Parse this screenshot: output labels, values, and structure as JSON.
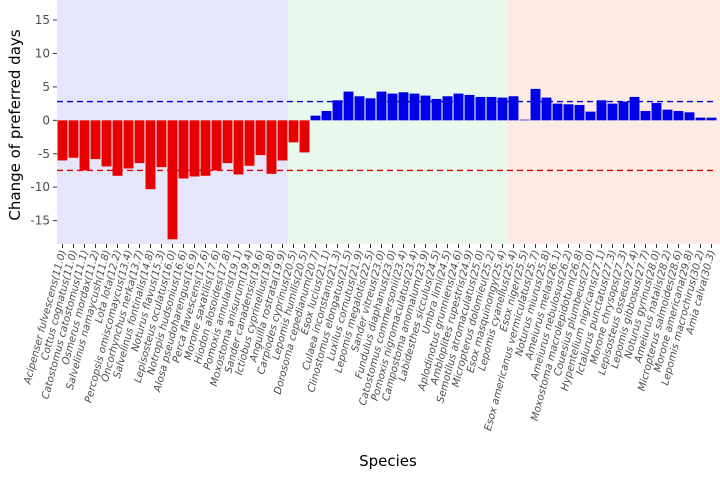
{
  "chart_data": {
    "type": "bar",
    "title": "",
    "xlabel": "Species",
    "ylabel": "Change of preferred days",
    "ylim": [
      -18.5,
      18
    ],
    "yticks": [
      -15,
      -10,
      -5,
      0,
      5,
      10,
      15
    ],
    "grid": false,
    "legend": "none",
    "reference_lines": [
      {
        "y": 2.8,
        "color": "#0000cc",
        "style": "dashed"
      },
      {
        "y": -7.5,
        "color": "#dd0000",
        "style": "dashed"
      }
    ],
    "background_bands": [
      {
        "from": 0,
        "to": 20,
        "color": "#e6e6fb"
      },
      {
        "from": 21,
        "to": 40,
        "color": "#e8f8ec"
      },
      {
        "from": 41,
        "to": 80,
        "color": "#fcebe3"
      }
    ],
    "colors": {
      "negative": "#e60000",
      "positive": "#0000e6"
    },
    "categories": [
      "Acipenser fulvescens(11.0)",
      "Cottus cognatus(11.0)",
      "Catostomus catostomus(11.1)",
      "Osmerus mordax(11.2)",
      "Salvelinus namaycush(11.8)",
      "Lota lota(12.2)",
      "Percopsis omiscomaycus(13.4)",
      "Oncorhynchus nerka(13.7)",
      "Salvelinus fontinalis(14.8)",
      "Noturus flavus(15.3)",
      "Lepisosteus oculatus(16.0)",
      "Notropis hudsonius(16.6)",
      "Alosa pseudoharengus(16.9)",
      "Perca flavescens(17.6)",
      "Morone saxatilis(17.6)",
      "Hiodon alosoides(17.8)",
      "Pomoxis annularis(19.1)",
      "Moxostoma anisurum(19.4)",
      "Sander canadensis(19.6)",
      "Ictiobus cyprinellus(19.8)",
      "Anguilla rostrata(19.9)",
      "Carpiodes cyprinus(20.5)",
      "Lepomis humilis(20.5)",
      "Dorosoma cepedianum(20.7)",
      "Esox lucius(21.1)",
      "Culaea inconstans(21.3)",
      "Clinostomus elongatus(21.5)",
      "Luxilus cornutus(21.9)",
      "Lepomis megalotis(22.5)",
      "Sander vitreus(23.0)",
      "Fundulus diaphanus(23.0)",
      "Catostomus commersonii(23.4)",
      "Pomoxis nigromaculatus(23.4)",
      "Campostoma anomalum(23.9)",
      "Labidesthes sicculus(24.5)",
      "Umbra limi(24.5)",
      "Aplodinotus grunniens(24.6)",
      "Ambloplites rupestris(24.9)",
      "Semotilus atromaculatus(25.0)",
      "Micropterus dolomieu(25.2)",
      "Esox masquinongy(25.4)",
      "Lepomis cyanellus(25.4)",
      "Esox niger(25.5)",
      "Esox americanus vermiculatus(25.7)",
      "Noturus miurus(25.8)",
      "Ameiurus melas(26.1)",
      "Ameiurus nebulosus(26.2)",
      "Moxostoma macrolepidotum(26.8)",
      "Couesius plumbeus(27.0)",
      "Hypentelium nigricans(27.1)",
      "Ictalurus punctatus(27.3)",
      "Morone chrysops(27.3)",
      "Lepisosteus osseus(27.4)",
      "Lepomis gibbosus(27.7)",
      "Noturus gyrinus(28.0)",
      "Ameiurus natalis(28.2)",
      "Micropterus salmoides(28.6)",
      "Morone americana(29.8)",
      "Lepomis macrochirus(30.2)",
      "Amia calva(30.3)"
    ],
    "values": [
      -6.0,
      -5.6,
      -7.5,
      -5.8,
      -6.9,
      -8.3,
      -7.2,
      -6.4,
      -10.3,
      -7.0,
      -17.8,
      -8.7,
      -8.4,
      -8.3,
      -7.5,
      -6.4,
      -8.1,
      -6.8,
      -5.2,
      -8.0,
      -6.0,
      -3.3,
      -4.8,
      0.7,
      1.4,
      3.0,
      4.3,
      3.6,
      3.3,
      4.3,
      4.0,
      4.2,
      4.0,
      3.7,
      3.2,
      3.6,
      4.0,
      3.8,
      3.5,
      3.5,
      3.4,
      3.6,
      0.1,
      4.7,
      3.4,
      2.5,
      2.4,
      2.3,
      1.3,
      3.0,
      2.5,
      2.8,
      3.5,
      1.4,
      2.6,
      1.6,
      1.4,
      1.2,
      0.4,
      0.4
    ]
  }
}
